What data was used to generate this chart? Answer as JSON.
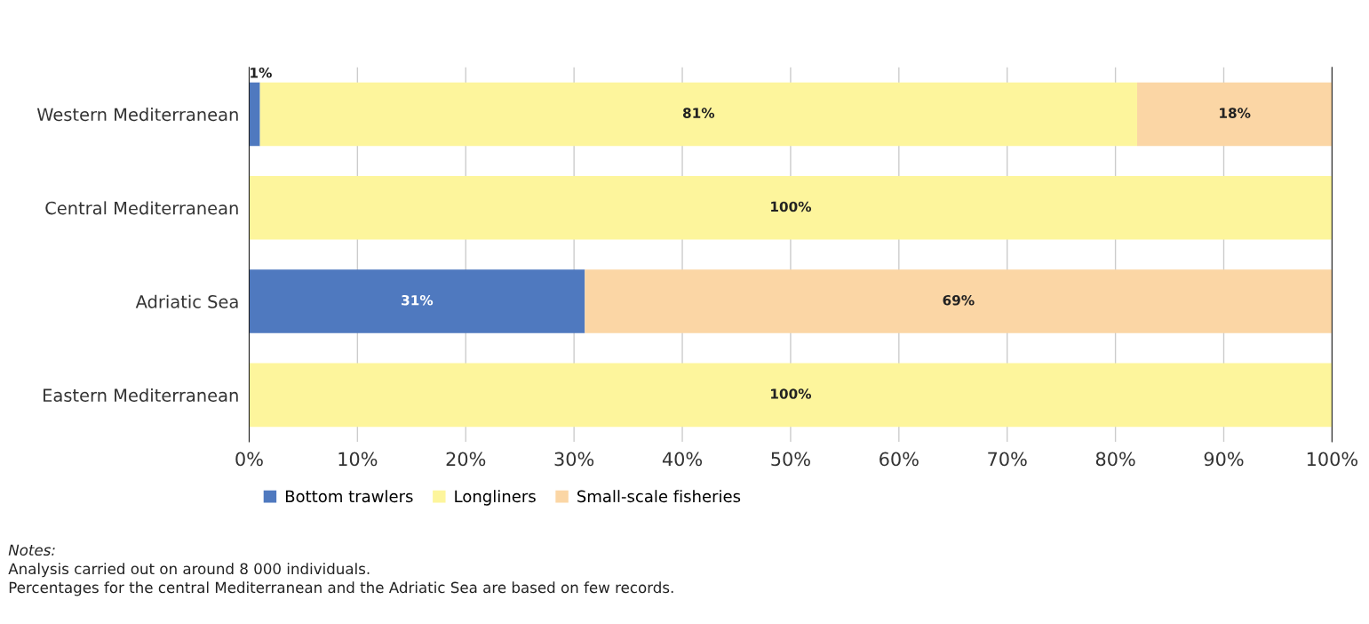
{
  "chart_data": {
    "type": "bar",
    "orientation": "horizontal",
    "stacked": true,
    "categories": [
      "Western Mediterranean",
      "Central Mediterranean",
      "Adriatic Sea",
      "Eastern Mediterranean"
    ],
    "series": [
      {
        "name": "Bottom trawlers",
        "color": "#4f79bf",
        "values": [
          1,
          0,
          31,
          0
        ],
        "value_labels": [
          "1%",
          null,
          "31%",
          null
        ]
      },
      {
        "name": "Longliners",
        "color": "#fdf59c",
        "values": [
          81,
          100,
          0,
          100
        ],
        "value_labels": [
          "81%",
          "100%",
          null,
          "100%"
        ]
      },
      {
        "name": "Small-scale fisheries",
        "color": "#fbd6a5",
        "values": [
          18,
          0,
          69,
          0
        ],
        "value_labels": [
          "18%",
          null,
          "69%",
          null
        ]
      }
    ],
    "xlim": [
      0,
      100
    ],
    "xticks": [
      {
        "value": 0,
        "label": "0%"
      },
      {
        "value": 10,
        "label": "10%"
      },
      {
        "value": 20,
        "label": "20%"
      },
      {
        "value": 30,
        "label": "30%"
      },
      {
        "value": 40,
        "label": "40%"
      },
      {
        "value": 50,
        "label": "50%"
      },
      {
        "value": 60,
        "label": "60%"
      },
      {
        "value": 70,
        "label": "70%"
      },
      {
        "value": 80,
        "label": "80%"
      },
      {
        "value": 90,
        "label": "90%"
      },
      {
        "value": 100,
        "label": "100%"
      }
    ],
    "grid": "x",
    "legend": "bottom",
    "annotations": [
      "Notes:",
      "Analysis carried out on around 8 000 individuals.",
      "Percentages for the central Mediterranean and the Adriatic Sea are based on few records."
    ]
  }
}
